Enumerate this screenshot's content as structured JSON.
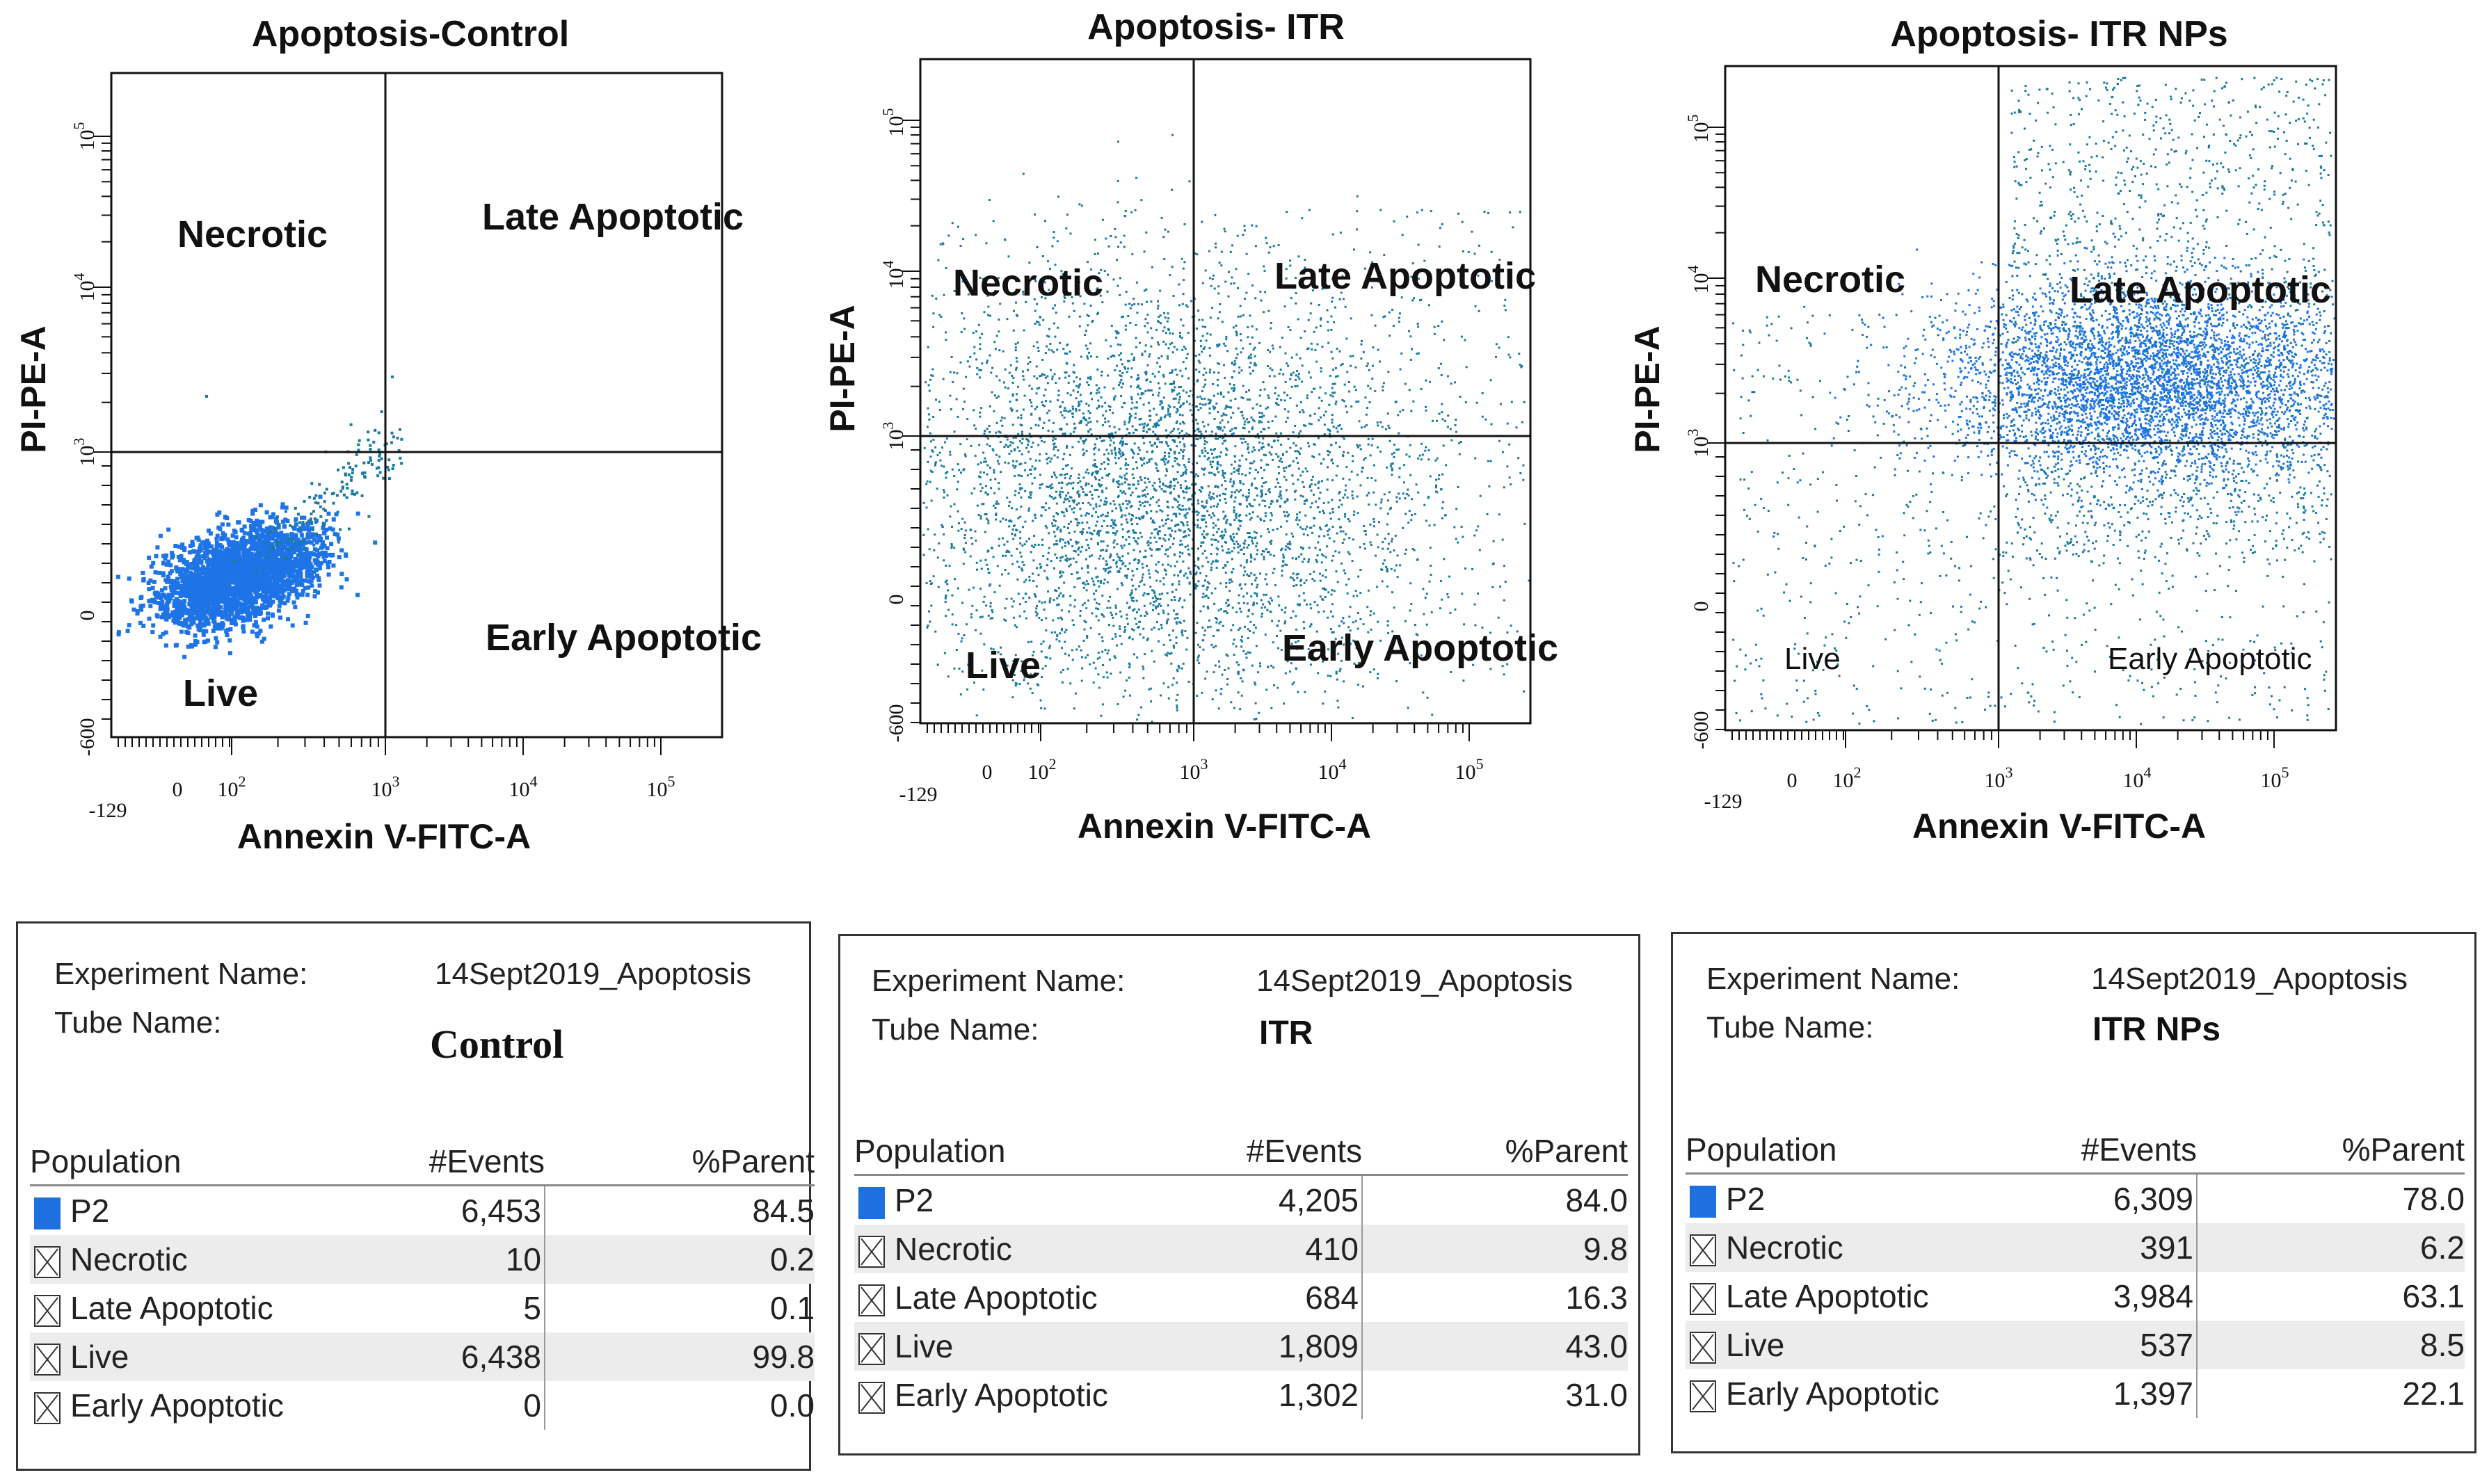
{
  "colors": {
    "dot": "#1a7aa0",
    "dot_dense": "#1e74e6",
    "swatch": "#1e6fe0",
    "axis": "#111111"
  },
  "chart_data": [
    {
      "type": "scatter",
      "title": "Apoptosis-Control",
      "xlabel": "Annexin V-FITC-A",
      "ylabel": "PI-PE-A",
      "x_ticks": [
        "-129",
        "0",
        "10",
        "10",
        "10",
        "10"
      ],
      "x_tick_exponents": [
        "",
        "",
        "2",
        "3",
        "4",
        "5"
      ],
      "y_ticks": [
        "-600",
        "0",
        "10",
        "10",
        "10"
      ],
      "y_tick_exponents": [
        "",
        "",
        "3",
        "4",
        "5"
      ],
      "xlim": [
        -129,
        262144
      ],
      "ylim": [
        -600,
        262144
      ],
      "quadrant_gates": {
        "x": 1000,
        "y": 1000
      },
      "quadrant_labels": {
        "top_left": "Necrotic",
        "top_right": "Late Apoptotic",
        "bottom_left": "Live",
        "bottom_right": "Early Apoptotic"
      },
      "populations": {
        "necrotic_events": 10,
        "late_apoptotic_events": 5,
        "live_events": 6438,
        "early_apoptotic_events": 0
      }
    },
    {
      "type": "scatter",
      "title": "Apoptosis- ITR",
      "xlabel": "Annexin V-FITC-A",
      "ylabel": "PI-PE-A",
      "x_ticks": [
        "-129",
        "0",
        "10",
        "10",
        "10",
        "10"
      ],
      "x_tick_exponents": [
        "",
        "",
        "2",
        "3",
        "4",
        "5"
      ],
      "y_ticks": [
        "-600",
        "0",
        "10",
        "10",
        "10"
      ],
      "y_tick_exponents": [
        "",
        "",
        "3",
        "4",
        "5"
      ],
      "xlim": [
        -129,
        262144
      ],
      "ylim": [
        -600,
        262144
      ],
      "quadrant_gates": {
        "x": 1000,
        "y": 1000
      },
      "quadrant_labels": {
        "top_left": "Necrotic",
        "top_right": "Late Apoptotic",
        "bottom_left": "Live",
        "bottom_right": "Early Apoptotic"
      },
      "populations": {
        "necrotic_events": 410,
        "late_apoptotic_events": 684,
        "live_events": 1809,
        "early_apoptotic_events": 1302
      }
    },
    {
      "type": "scatter",
      "title": "Apoptosis- ITR NPs",
      "xlabel": "Annexin V-FITC-A",
      "ylabel": "PI-PE-A",
      "x_ticks": [
        "-129",
        "0",
        "10",
        "10",
        "10",
        "10"
      ],
      "x_tick_exponents": [
        "",
        "",
        "2",
        "3",
        "4",
        "5"
      ],
      "y_ticks": [
        "-600",
        "0",
        "10",
        "10",
        "10"
      ],
      "y_tick_exponents": [
        "",
        "",
        "3",
        "4",
        "5"
      ],
      "xlim": [
        -129,
        262144
      ],
      "ylim": [
        -600,
        262144
      ],
      "quadrant_gates": {
        "x": 1000,
        "y": 1000
      },
      "quadrant_labels": {
        "top_left": "Necrotic",
        "top_right": "Late Apoptotic",
        "bottom_left": "Live",
        "bottom_right": "Early Apoptotic"
      },
      "populations": {
        "necrotic_events": 391,
        "late_apoptotic_events": 3984,
        "live_events": 537,
        "early_apoptotic_events": 1397
      }
    }
  ],
  "panels": [
    {
      "experiment_label": "Experiment Name:",
      "experiment_value": "14Sept2019_Apoptosis",
      "tube_label": "Tube Name:",
      "tube_value": "Control",
      "headers": {
        "population": "Population",
        "events": "#Events",
        "parent": "%Parent"
      },
      "rows": [
        {
          "name": "P2",
          "events": "6,453",
          "parent": "84.5",
          "swatch": "fill"
        },
        {
          "name": "Necrotic",
          "events": "10",
          "parent": "0.2",
          "swatch": "x"
        },
        {
          "name": "Late Apoptotic",
          "events": "5",
          "parent": "0.1",
          "swatch": "x"
        },
        {
          "name": "Live",
          "events": "6,438",
          "parent": "99.8",
          "swatch": "x"
        },
        {
          "name": "Early Apoptotic",
          "events": "0",
          "parent": "0.0",
          "swatch": "x"
        }
      ]
    },
    {
      "experiment_label": "Experiment Name:",
      "experiment_value": "14Sept2019_Apoptosis",
      "tube_label": "Tube Name:",
      "tube_value": "ITR",
      "headers": {
        "population": "Population",
        "events": "#Events",
        "parent": "%Parent"
      },
      "rows": [
        {
          "name": "P2",
          "events": "4,205",
          "parent": "84.0",
          "swatch": "fill"
        },
        {
          "name": "Necrotic",
          "events": "410",
          "parent": "9.8",
          "swatch": "x"
        },
        {
          "name": "Late Apoptotic",
          "events": "684",
          "parent": "16.3",
          "swatch": "x"
        },
        {
          "name": "Live",
          "events": "1,809",
          "parent": "43.0",
          "swatch": "x"
        },
        {
          "name": "Early Apoptotic",
          "events": "1,302",
          "parent": "31.0",
          "swatch": "x"
        }
      ]
    },
    {
      "experiment_label": "Experiment Name:",
      "experiment_value": "14Sept2019_Apoptosis",
      "tube_label": "Tube Name:",
      "tube_value": "ITR NPs",
      "headers": {
        "population": "Population",
        "events": "#Events",
        "parent": "%Parent"
      },
      "rows": [
        {
          "name": "P2",
          "events": "6,309",
          "parent": "78.0",
          "swatch": "fill"
        },
        {
          "name": "Necrotic",
          "events": "391",
          "parent": "6.2",
          "swatch": "x"
        },
        {
          "name": "Late Apoptotic",
          "events": "3,984",
          "parent": "63.1",
          "swatch": "x"
        },
        {
          "name": "Live",
          "events": "537",
          "parent": "8.5",
          "swatch": "x"
        },
        {
          "name": "Early Apoptotic",
          "events": "1,397",
          "parent": "22.1",
          "swatch": "x"
        }
      ]
    }
  ]
}
